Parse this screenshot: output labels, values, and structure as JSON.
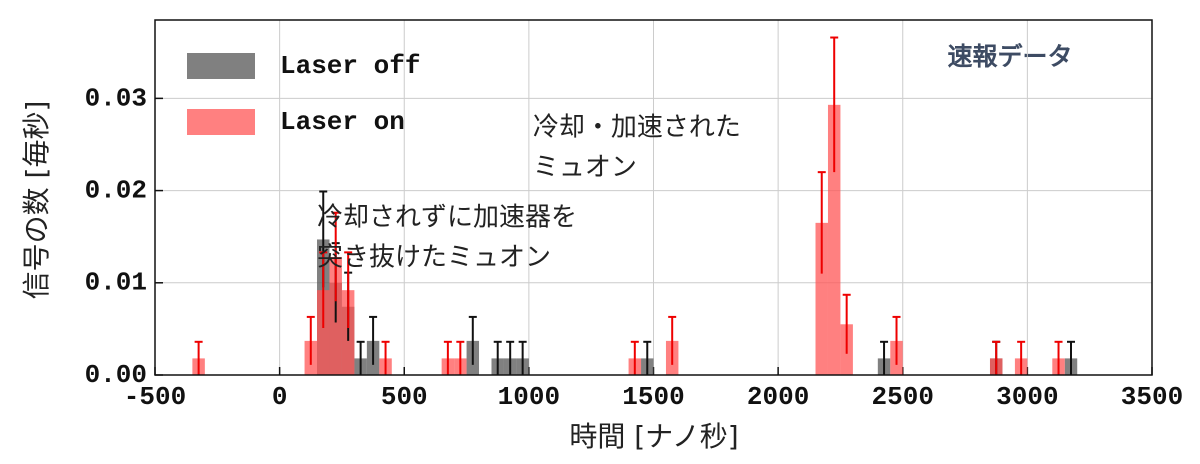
{
  "chart_data": {
    "type": "histogram",
    "xlabel": "時間 [ナノ秒]",
    "ylabel": "信号の数 [毎秒]",
    "bins": [
      -500,
      -450,
      -400,
      -350,
      -300,
      -250,
      -200,
      -150,
      -100,
      -50,
      0,
      50,
      100,
      150,
      200,
      250,
      300,
      350,
      400,
      450,
      500,
      550,
      600,
      650,
      700,
      750,
      800,
      850,
      900,
      950,
      1000,
      1050,
      1100,
      1150,
      1200,
      1250,
      1300,
      1350,
      1400,
      1450,
      1500,
      1550,
      1600,
      1650,
      1700,
      1750,
      1800,
      1850,
      1900,
      1950,
      2000,
      2050,
      2100,
      2150,
      2200,
      2250,
      2300,
      2350,
      2400,
      2450,
      2500,
      2550,
      2600,
      2650,
      2700,
      2750,
      2800,
      2850,
      2900,
      2950,
      3000,
      3050,
      3100,
      3150,
      3200,
      3250,
      3300,
      3350,
      3400,
      3450,
      3500
    ],
    "series": [
      {
        "name": "Laser off",
        "color": "#555555",
        "error_color": "#111111",
        "values": [
          0,
          0,
          0,
          0,
          0,
          0,
          0,
          0,
          0,
          0,
          0,
          0,
          0,
          0.0147,
          0.01,
          0.0074,
          0.0018,
          0.0037,
          0,
          0,
          0,
          0,
          0,
          0,
          0,
          0.0037,
          0,
          0.0018,
          0.0018,
          0.0018,
          0,
          0,
          0,
          0,
          0,
          0,
          0,
          0,
          0,
          0.0018,
          0,
          0,
          0,
          0,
          0,
          0,
          0,
          0,
          0,
          0,
          0,
          0,
          0,
          0,
          0,
          0,
          0,
          0,
          0.0018,
          0,
          0,
          0,
          0,
          0,
          0,
          0,
          0,
          0.0018,
          0,
          0,
          0,
          0,
          0,
          0.0018,
          0,
          0,
          0,
          0,
          0,
          0
        ],
        "errors": [
          null,
          null,
          null,
          null,
          null,
          null,
          null,
          null,
          null,
          null,
          null,
          null,
          null,
          0.0052,
          0.0043,
          0.0037,
          0.0018,
          0.0026,
          null,
          null,
          null,
          null,
          null,
          null,
          null,
          0.0026,
          null,
          0.0018,
          0.0018,
          0.0018,
          null,
          null,
          null,
          null,
          null,
          null,
          null,
          null,
          null,
          0.0018,
          null,
          null,
          null,
          null,
          null,
          null,
          null,
          null,
          null,
          null,
          null,
          null,
          null,
          null,
          null,
          null,
          null,
          null,
          0.0018,
          null,
          null,
          null,
          null,
          null,
          null,
          null,
          null,
          0.0018,
          null,
          null,
          null,
          null,
          null,
          0.0018,
          null,
          null,
          null,
          null,
          null,
          null
        ]
      },
      {
        "name": "Laser on",
        "color": "#ff5555",
        "error_color": "#ee0000",
        "values": [
          0,
          0,
          0,
          0.0018,
          0,
          0,
          0,
          0,
          0,
          0,
          0,
          0,
          0.0037,
          0.0092,
          0.0128,
          0.0092,
          0,
          0,
          0.0018,
          0,
          0,
          0,
          0,
          0.0018,
          0.0018,
          0,
          0,
          0,
          0,
          0,
          0,
          0,
          0,
          0,
          0,
          0,
          0,
          0,
          0.0018,
          0,
          0,
          0.0037,
          0,
          0,
          0,
          0,
          0,
          0,
          0,
          0,
          0,
          0,
          0,
          0.0165,
          0.0293,
          0.0055,
          0,
          0,
          0,
          0.0037,
          0,
          0,
          0,
          0,
          0,
          0,
          0,
          0.0018,
          0,
          0.0018,
          0,
          0,
          0.0018,
          0,
          0,
          0,
          0,
          0,
          0,
          0
        ],
        "errors": [
          null,
          null,
          null,
          0.0018,
          null,
          null,
          null,
          null,
          null,
          null,
          null,
          null,
          0.0026,
          0.0041,
          0.0048,
          0.0041,
          null,
          null,
          0.0018,
          null,
          null,
          null,
          null,
          0.0018,
          0.0018,
          null,
          null,
          null,
          null,
          null,
          null,
          null,
          null,
          null,
          null,
          null,
          null,
          null,
          0.0018,
          null,
          null,
          0.0026,
          null,
          null,
          null,
          null,
          null,
          null,
          null,
          null,
          null,
          null,
          null,
          0.0055,
          0.0073,
          0.0032,
          null,
          null,
          null,
          0.0026,
          null,
          null,
          null,
          null,
          null,
          null,
          null,
          0.0018,
          null,
          0.0018,
          null,
          null,
          0.0018,
          null,
          null,
          null,
          null,
          null,
          null,
          null
        ]
      }
    ],
    "xlim": [
      -500,
      3500
    ],
    "xticks": [
      -500,
      0,
      500,
      1000,
      1500,
      2000,
      2500,
      3000,
      3500
    ],
    "ylim": [
      0,
      0.0385
    ],
    "yticks": [
      {
        "value": 0,
        "label": "0.00"
      },
      {
        "value": 0.01,
        "label": "0.01"
      },
      {
        "value": 0.02,
        "label": "0.02"
      },
      {
        "value": 0.03,
        "label": "0.03"
      }
    ],
    "grid": true,
    "legend": "upper left",
    "badge": "速報データ",
    "annotations": [
      {
        "lines": [
          "冷却されずに加速器を",
          "突き抜けたミュオン"
        ],
        "x": 150
      },
      {
        "lines": [
          "冷却・加速された",
          "ミュオン"
        ],
        "x": 2340
      }
    ]
  }
}
